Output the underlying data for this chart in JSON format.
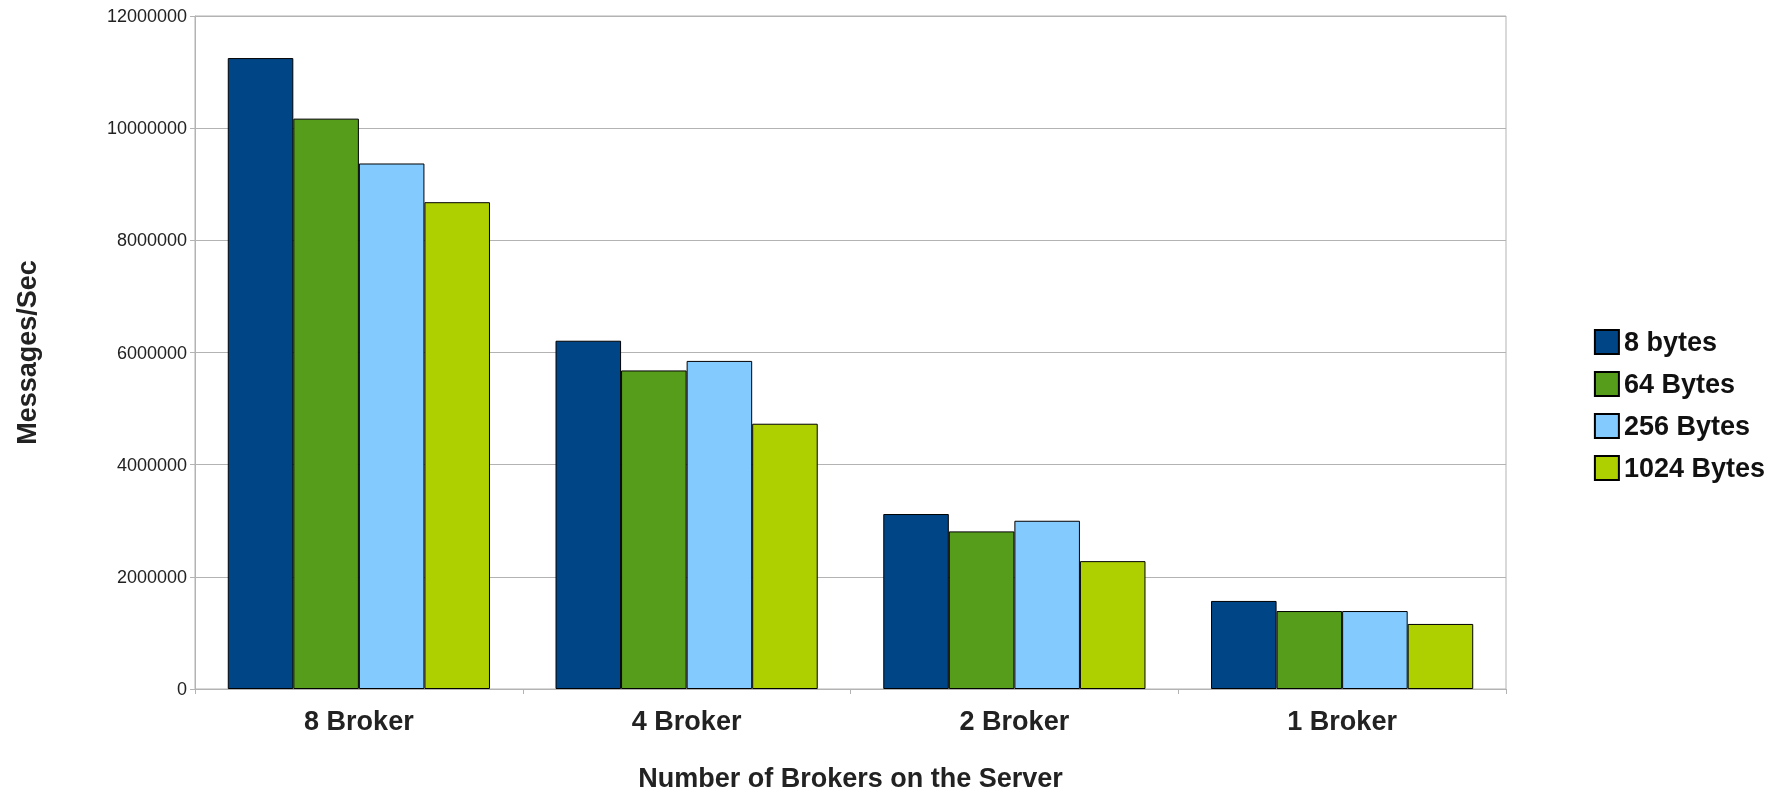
{
  "chart_data": {
    "type": "bar",
    "xlabel": "Number of Brokers on the Server",
    "ylabel": "Messages/Sec",
    "categories": [
      "8 Broker",
      "4 Broker",
      "2 Broker",
      "1 Broker"
    ],
    "series": [
      {
        "name": "8 bytes",
        "color": "#004586",
        "values": [
          11250000,
          6210000,
          3120000,
          1570000
        ]
      },
      {
        "name": "64 Bytes",
        "color": "#579d1c",
        "values": [
          10170000,
          5680000,
          2810000,
          1390000
        ]
      },
      {
        "name": "256 Bytes",
        "color": "#83caff",
        "values": [
          9370000,
          5850000,
          3000000,
          1390000
        ]
      },
      {
        "name": "1024 Bytes",
        "color": "#aecf00",
        "values": [
          8680000,
          4730000,
          2280000,
          1160000
        ]
      }
    ],
    "ylim": [
      0,
      12000000
    ],
    "yticks": [
      0,
      2000000,
      4000000,
      6000000,
      8000000,
      10000000,
      12000000
    ],
    "grid": "y",
    "legend": "right"
  }
}
